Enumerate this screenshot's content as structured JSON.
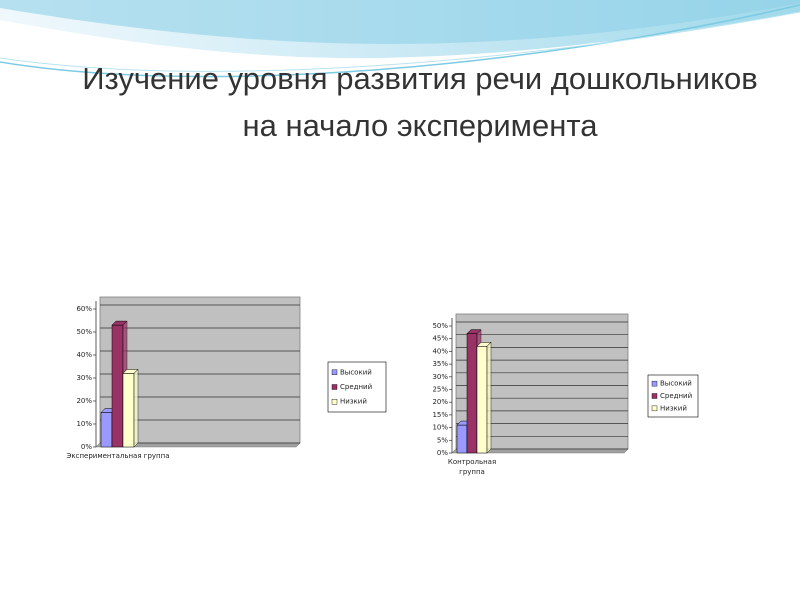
{
  "slide": {
    "title": "Изучение уровня развития речи дошкольников на начало эксперимента"
  },
  "chart_data": [
    {
      "type": "bar",
      "categories": [
        "Экспериментальная группа"
      ],
      "series": [
        {
          "name": "Высокий",
          "color": "#9999ff",
          "values": [
            15
          ]
        },
        {
          "name": "Средний",
          "color": "#993366",
          "values": [
            53
          ]
        },
        {
          "name": "Низкий",
          "color": "#ffffcc",
          "values": [
            32
          ]
        }
      ],
      "ylim": [
        0,
        60
      ],
      "yticks": [
        {
          "value": 0,
          "label": "0%"
        },
        {
          "value": 10,
          "label": "10%"
        },
        {
          "value": 20,
          "label": "20%"
        },
        {
          "value": 30,
          "label": "30%"
        },
        {
          "value": 40,
          "label": "40%"
        },
        {
          "value": 50,
          "label": "50%"
        },
        {
          "value": 60,
          "label": "60%"
        }
      ],
      "grid": true,
      "legend": "right"
    },
    {
      "type": "bar",
      "categories": [
        "Контрольная группа"
      ],
      "series": [
        {
          "name": "Высокий",
          "color": "#9999ff",
          "values": [
            11
          ]
        },
        {
          "name": "Средний",
          "color": "#993366",
          "values": [
            47
          ]
        },
        {
          "name": "Низкий",
          "color": "#ffffcc",
          "values": [
            42
          ]
        }
      ],
      "ylim": [
        0,
        50
      ],
      "yticks": [
        {
          "value": 0,
          "label": "0%"
        },
        {
          "value": 5,
          "label": "5%"
        },
        {
          "value": 10,
          "label": "10%"
        },
        {
          "value": 15,
          "label": "15%"
        },
        {
          "value": 20,
          "label": "20%"
        },
        {
          "value": 25,
          "label": "25%"
        },
        {
          "value": 30,
          "label": "30%"
        },
        {
          "value": 35,
          "label": "35%"
        },
        {
          "value": 40,
          "label": "40%"
        },
        {
          "value": 45,
          "label": "45%"
        },
        {
          "value": 50,
          "label": "50%"
        }
      ],
      "grid": true,
      "legend": "right"
    }
  ]
}
